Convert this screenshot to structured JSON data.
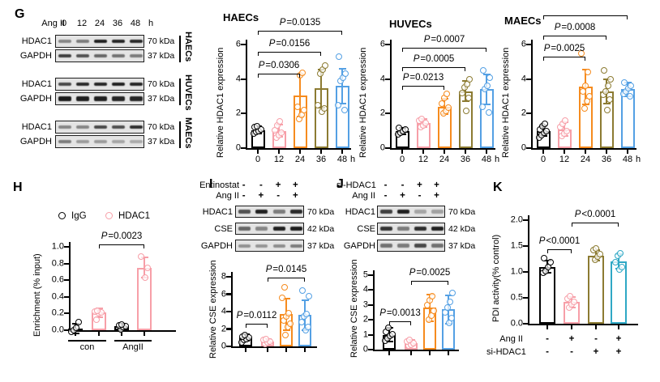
{
  "colors": {
    "black": "#000000",
    "pink": "#F79FA8",
    "orange": "#F68B1E",
    "olive": "#8C7B32",
    "blue": "#54A0E4",
    "teal": "#2FA8C5"
  },
  "figure": {
    "panels": {
      "G": {
        "label": "G",
        "blot_header": {
          "lead": "Ang II",
          "times": [
            "0",
            "12",
            "24",
            "36",
            "48"
          ],
          "unit": "h"
        },
        "blot_groups": [
          {
            "cell": "HAECs",
            "rows": [
              {
                "protein": "HDAC1",
                "kda": "70 kDa",
                "thickness": 4,
                "bands": [
                  0.45,
                  0.5,
                  0.95,
                  0.92,
                  0.9
                ]
              },
              {
                "protein": "GAPDH",
                "kda": "37 kDa",
                "thickness": 3.5,
                "bands": [
                  0.8,
                  0.7,
                  0.6,
                  0.55,
                  0.5
                ]
              }
            ]
          },
          {
            "cell": "HUVECs",
            "rows": [
              {
                "protein": "HDAC1",
                "kda": "70 kDa",
                "thickness": 4.5,
                "bands": [
                  0.75,
                  0.9,
                  0.92,
                  0.95,
                  0.92
                ]
              },
              {
                "protein": "GAPDH",
                "kda": "37 kDa",
                "thickness": 5.5,
                "bands": [
                  0.98,
                  0.96,
                  0.95,
                  0.92,
                  0.92
                ]
              }
            ]
          },
          {
            "cell": "MAECs",
            "rows": [
              {
                "protein": "HDAC1",
                "kda": "70 kDa",
                "thickness": 4,
                "bands": [
                  0.45,
                  0.45,
                  0.75,
                  0.72,
                  0.88
                ]
              },
              {
                "protein": "GAPDH",
                "kda": "37 kDa",
                "thickness": 3.5,
                "bands": [
                  0.5,
                  0.35,
                  0.35,
                  0.3,
                  0.28
                ]
              }
            ]
          }
        ]
      },
      "H": {
        "label": "H",
        "legend": [
          {
            "name": "IgG",
            "color": "black"
          },
          {
            "name": "HDAC1",
            "color": "pink"
          }
        ]
      },
      "I": {
        "label": "I",
        "conditions": [
          {
            "label": "Entinostat",
            "values": [
              "-",
              "-",
              "+",
              "+"
            ]
          },
          {
            "label": "Ang II",
            "values": [
              "-",
              "+",
              "-",
              "+"
            ]
          }
        ],
        "blot_rows": [
          {
            "protein": "HDAC1",
            "kda": "70 kDa",
            "thickness": 4.5,
            "bands": [
              0.7,
              0.95,
              0.5,
              0.9
            ]
          },
          {
            "protein": "CSE",
            "kda": "42 kDa",
            "thickness": 4.5,
            "bands": [
              0.6,
              0.45,
              0.95,
              0.97
            ]
          },
          {
            "protein": "GAPDH",
            "kda": "37 kDa",
            "thickness": 4,
            "bands": [
              0.4,
              0.38,
              0.42,
              0.5
            ]
          }
        ]
      },
      "J": {
        "label": "J",
        "conditions": [
          {
            "label": "si-HDAC1",
            "values": [
              "-",
              "-",
              "+",
              "+"
            ]
          },
          {
            "label": "Ang II",
            "values": [
              "-",
              "+",
              "-",
              "+"
            ]
          }
        ],
        "blot_rows": [
          {
            "protein": "HDAC1",
            "kda": "70 kDa",
            "thickness": 4.5,
            "bands": [
              0.8,
              0.95,
              0.3,
              0.32
            ]
          },
          {
            "protein": "CSE",
            "kda": "42 kDa",
            "thickness": 5,
            "bands": [
              0.85,
              0.5,
              0.88,
              0.95
            ]
          },
          {
            "protein": "GAPDH",
            "kda": "37 kDa",
            "thickness": 4.5,
            "bands": [
              0.55,
              0.5,
              0.75,
              0.55
            ]
          }
        ]
      },
      "K": {
        "label": "K",
        "conditions": [
          {
            "label": "Ang II",
            "values": [
              "-",
              "+",
              "-",
              "+"
            ]
          },
          {
            "label": "si-HDAC1",
            "values": [
              "-",
              "-",
              "+",
              "+"
            ]
          }
        ]
      }
    }
  },
  "chart_data": [
    {
      "id": "g_haecs",
      "type": "bar",
      "title": "HAECs",
      "ylabel": "Relative HDAC1 expression",
      "ymax": 6,
      "yticks": [
        "0",
        "2",
        "4",
        "6"
      ],
      "categories": [
        "0",
        "12",
        "24",
        "36",
        "48"
      ],
      "x_unit": "h",
      "series": [
        {
          "category": "0",
          "color": "black",
          "value": 1.05,
          "sd": 0.2,
          "points": [
            0.85,
            0.95,
            1.0,
            1.1,
            1.2,
            1.25
          ]
        },
        {
          "category": "12",
          "color": "pink",
          "value": 1.0,
          "sd": 0.35,
          "points": [
            0.6,
            0.75,
            0.9,
            1.05,
            1.3,
            1.55
          ]
        },
        {
          "category": "24",
          "color": "orange",
          "value": 3.05,
          "sd": 1.2,
          "points": [
            1.7,
            1.9,
            2.2,
            2.4,
            4.2,
            4.35
          ]
        },
        {
          "category": "36",
          "color": "olive",
          "value": 3.45,
          "sd": 1.1,
          "points": [
            2.1,
            2.3,
            2.5,
            4.3,
            4.55,
            4.8
          ]
        },
        {
          "category": "48",
          "color": "blue",
          "value": 3.6,
          "sd": 1.0,
          "points": [
            2.2,
            2.5,
            3.9,
            4.1,
            4.3,
            5.3
          ]
        }
      ],
      "significance": [
        {
          "from": 0,
          "to": 2,
          "label": "P=0.0306",
          "y": 4.3
        },
        {
          "from": 0,
          "to": 3,
          "label": "P=0.0156",
          "y": 5.6
        },
        {
          "from": 0,
          "to": 4,
          "label": "P=0.0135",
          "y": 6.8
        }
      ]
    },
    {
      "id": "g_huvecs",
      "type": "bar",
      "title": "HUVECs",
      "ylabel": "Relative HDAC1 expression",
      "ymax": 6,
      "yticks": [
        "0",
        "2",
        "4",
        "6"
      ],
      "categories": [
        "0",
        "12",
        "24",
        "36",
        "48"
      ],
      "x_unit": "h",
      "series": [
        {
          "category": "0",
          "color": "black",
          "value": 1.0,
          "sd": 0.18,
          "points": [
            0.8,
            0.9,
            1.0,
            1.1,
            1.15
          ]
        },
        {
          "category": "12",
          "color": "pink",
          "value": 1.45,
          "sd": 0.25,
          "points": [
            1.2,
            1.3,
            1.45,
            1.6,
            1.7
          ]
        },
        {
          "category": "24",
          "color": "orange",
          "value": 2.4,
          "sd": 0.45,
          "points": [
            2.0,
            2.15,
            2.35,
            2.6,
            2.9,
            3.15
          ]
        },
        {
          "category": "36",
          "color": "olive",
          "value": 3.3,
          "sd": 0.6,
          "points": [
            2.15,
            2.9,
            3.2,
            3.5,
            3.7,
            4.0
          ]
        },
        {
          "category": "48",
          "color": "blue",
          "value": 3.4,
          "sd": 0.85,
          "points": [
            2.05,
            2.4,
            3.4,
            3.6,
            4.1,
            4.5
          ]
        }
      ],
      "significance": [
        {
          "from": 0,
          "to": 2,
          "label": "P=0.0213",
          "y": 3.6
        },
        {
          "from": 0,
          "to": 3,
          "label": "P=0.0005",
          "y": 4.7
        },
        {
          "from": 0,
          "to": 4,
          "label": "P=0.0007",
          "y": 5.8
        }
      ]
    },
    {
      "id": "g_maecs",
      "type": "bar",
      "title": "MAECs",
      "ylabel": "Relative HDAC1 expression",
      "ymax": 6,
      "yticks": [
        "0",
        "2",
        "4",
        "6"
      ],
      "categories": [
        "0",
        "12",
        "24",
        "36",
        "48"
      ],
      "x_unit": "h",
      "series": [
        {
          "category": "0",
          "color": "black",
          "value": 1.0,
          "sd": 0.3,
          "points": [
            0.6,
            0.75,
            0.9,
            1.0,
            1.1,
            1.25,
            1.4
          ]
        },
        {
          "category": "12",
          "color": "pink",
          "value": 1.1,
          "sd": 0.4,
          "points": [
            0.7,
            0.85,
            1.0,
            1.2,
            1.4,
            1.6
          ]
        },
        {
          "category": "24",
          "color": "orange",
          "value": 3.55,
          "sd": 1.0,
          "points": [
            2.3,
            2.7,
            3.0,
            3.3,
            3.6,
            4.4,
            5.5
          ]
        },
        {
          "category": "36",
          "color": "olive",
          "value": 3.3,
          "sd": 0.7,
          "points": [
            2.2,
            2.8,
            3.1,
            3.3,
            3.6,
            4.0,
            4.5
          ]
        },
        {
          "category": "48",
          "color": "blue",
          "value": 3.4,
          "sd": 0.4,
          "points": [
            3.0,
            3.15,
            3.3,
            3.45,
            3.6,
            3.8
          ]
        }
      ],
      "significance": [
        {
          "from": 0,
          "to": 2,
          "label": "P=0.0025",
          "y": 5.3
        },
        {
          "from": 0,
          "to": 3,
          "label": "P=0.0008",
          "y": 6.5
        },
        {
          "from": 0,
          "to": 4,
          "label": "",
          "y": 7.7
        }
      ]
    },
    {
      "id": "h_chip",
      "type": "bar",
      "title": "",
      "ylabel": "Enrichment (% input)",
      "ymax": 1.0,
      "yticks": [
        "0.0",
        "0.2",
        "0.4",
        "0.6",
        "0.8",
        "1.0"
      ],
      "categories": null,
      "groups": [
        {
          "label": "con",
          "from": 0,
          "to": 1
        },
        {
          "label": "AngII",
          "from": 2,
          "to": 3
        }
      ],
      "series": [
        {
          "group": "con",
          "antibody": "IgG",
          "color": "black",
          "value": 0.02,
          "sd": 0.06,
          "points": [
            -0.02,
            0.0,
            0.03,
            0.1
          ]
        },
        {
          "group": "con",
          "antibody": "HDAC1",
          "color": "pink",
          "value": 0.21,
          "sd": 0.05,
          "points": [
            0.13,
            0.2,
            0.21,
            0.22,
            0.23
          ]
        },
        {
          "group": "AngII",
          "antibody": "IgG",
          "color": "black",
          "value": 0.05,
          "sd": 0.03,
          "points": [
            0.01,
            0.04,
            0.05,
            0.06,
            0.07
          ]
        },
        {
          "group": "AngII",
          "antibody": "HDAC1",
          "color": "pink",
          "value": 0.75,
          "sd": 0.12,
          "points": [
            0.63,
            0.75,
            0.88
          ]
        }
      ],
      "significance": [
        {
          "from": 1,
          "to": 3,
          "label": "P=0.0023",
          "y": 1.03
        }
      ]
    },
    {
      "id": "i_cse",
      "type": "bar",
      "title": "",
      "ylabel": "Relative CSE expression",
      "ymax": 8,
      "yticks": [
        "0",
        "2",
        "4",
        "6",
        "8"
      ],
      "categories": null,
      "series": [
        {
          "color": "black",
          "value": 1.0,
          "sd": 0.35,
          "points": [
            0.5,
            0.7,
            0.85,
            1.0,
            1.15,
            1.3
          ]
        },
        {
          "color": "pink",
          "value": 0.6,
          "sd": 0.25,
          "points": [
            0.3,
            0.45,
            0.55,
            0.7,
            0.8
          ]
        },
        {
          "color": "orange",
          "value": 3.7,
          "sd": 1.8,
          "points": [
            1.3,
            2.2,
            2.6,
            3.0,
            3.4,
            3.8,
            5.6,
            6.8
          ]
        },
        {
          "color": "blue",
          "value": 3.6,
          "sd": 1.7,
          "points": [
            1.9,
            2.2,
            2.8,
            3.4,
            3.7,
            5.8,
            6.4
          ]
        }
      ],
      "significance": [
        {
          "from": 0,
          "to": 1,
          "label": "P=0.0112",
          "y": 2.6
        },
        {
          "from": 1,
          "to": 3,
          "label": "P=0.0145",
          "y": 7.9
        }
      ]
    },
    {
      "id": "j_cse",
      "type": "bar",
      "title": "",
      "ylabel": "Relative CSE expression",
      "ymax": 5,
      "yticks": [
        "0",
        "1",
        "2",
        "3",
        "4",
        "5"
      ],
      "categories": null,
      "series": [
        {
          "color": "black",
          "value": 1.0,
          "sd": 0.45,
          "points": [
            0.6,
            0.75,
            0.9,
            1.05,
            1.2,
            1.45
          ]
        },
        {
          "color": "pink",
          "value": 0.45,
          "sd": 0.2,
          "points": [
            0.25,
            0.35,
            0.45,
            0.55,
            0.65
          ]
        },
        {
          "color": "orange",
          "value": 2.8,
          "sd": 0.9,
          "points": [
            2.0,
            2.3,
            2.6,
            3.0,
            3.3,
            3.6
          ]
        },
        {
          "color": "blue",
          "value": 2.7,
          "sd": 0.95,
          "points": [
            1.8,
            2.1,
            2.5,
            2.8,
            3.2,
            3.8
          ]
        }
      ],
      "significance": [
        {
          "from": 0,
          "to": 1,
          "label": "P=0.0013",
          "y": 1.9
        },
        {
          "from": 1,
          "to": 3,
          "label": "P=0.0025",
          "y": 4.6
        }
      ]
    },
    {
      "id": "k_pdi",
      "type": "bar",
      "title": "",
      "ylabel": "PDI activity(% control)",
      "ymax": 2.0,
      "yticks": [
        "0.0",
        "0.5",
        "1.0",
        "1.5",
        "2.0"
      ],
      "categories": null,
      "series": [
        {
          "color": "black",
          "value": 1.1,
          "sd": 0.12,
          "points": [
            0.98,
            1.02,
            1.1,
            1.18,
            1.27
          ]
        },
        {
          "color": "pink",
          "value": 0.42,
          "sd": 0.1,
          "points": [
            0.32,
            0.38,
            0.42,
            0.48,
            0.53
          ]
        },
        {
          "color": "olive",
          "value": 1.32,
          "sd": 0.1,
          "points": [
            1.24,
            1.3,
            1.34,
            1.42,
            1.46
          ]
        },
        {
          "color": "teal",
          "value": 1.2,
          "sd": 0.14,
          "points": [
            1.05,
            1.1,
            1.18,
            1.32,
            1.36
          ]
        }
      ],
      "significance": [
        {
          "from": 0,
          "to": 1,
          "label": "P<0.0001",
          "y": 1.44
        },
        {
          "from": 1,
          "to": 3,
          "label": "P<0.0001",
          "y": 1.95
        }
      ]
    }
  ]
}
